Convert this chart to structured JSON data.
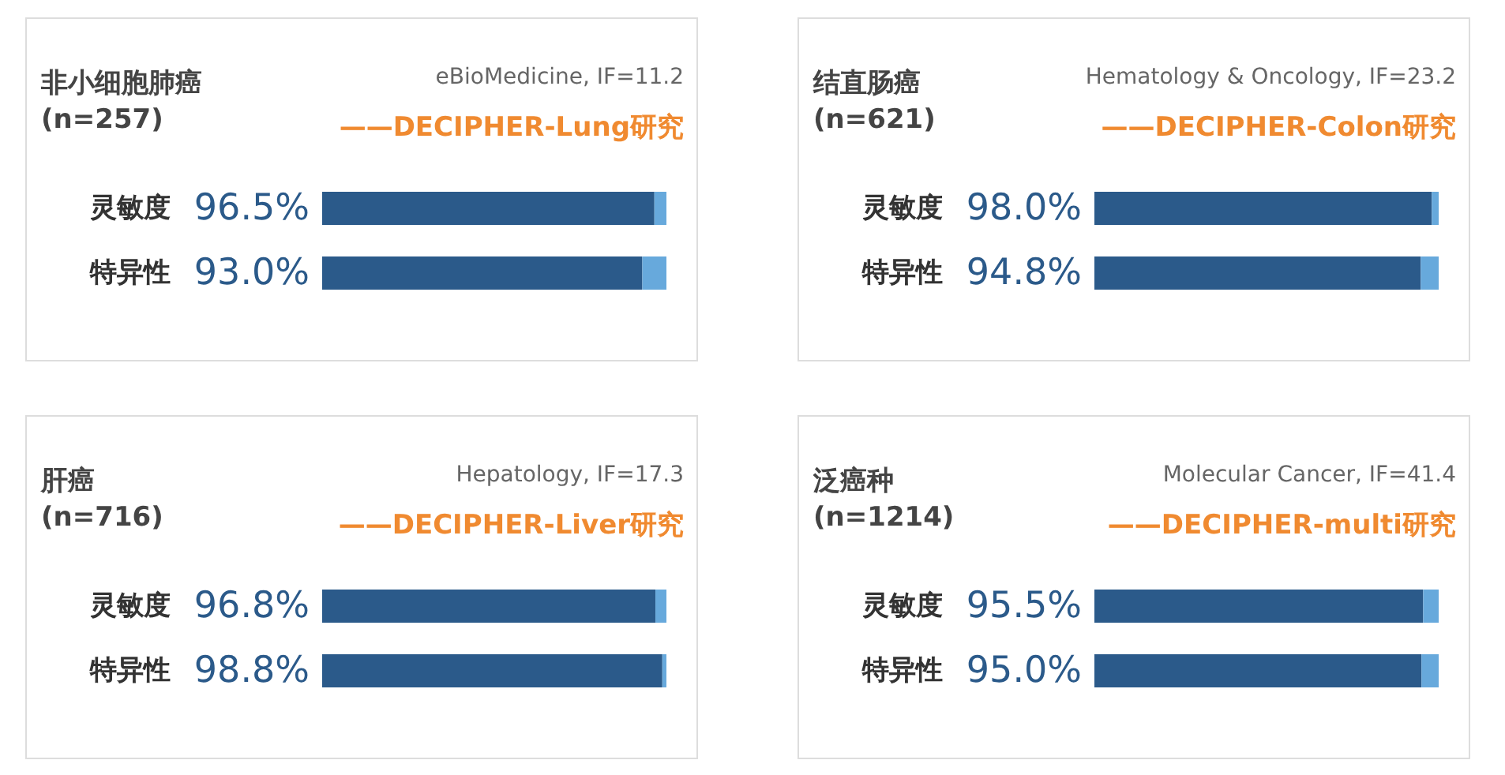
{
  "chart_data": [
    {
      "type": "bar",
      "orientation": "horizontal",
      "stacked": true,
      "title": "非小细胞肺癌\n(n=257)",
      "annotations": [
        "eBioMedicine, IF=11.2",
        "——DECIPHER-Lung研究"
      ],
      "categories": [
        "灵敏度",
        "特异性"
      ],
      "xlim": [
        0,
        100
      ],
      "tick_labels": false,
      "series": [
        {
          "color": "#2b5a8a",
          "values": [
            96.5,
            93.0
          ],
          "value_labels": [
            "96.5%",
            "93.0%"
          ]
        },
        {
          "color": "#67a9dc",
          "values": [
            3.5,
            7.0
          ]
        }
      ]
    },
    {
      "type": "bar",
      "orientation": "horizontal",
      "stacked": true,
      "title": "结直肠癌\n(n=621)",
      "annotations": [
        "Hematology & Oncology, IF=23.2",
        "——DECIPHER-Colon研究"
      ],
      "categories": [
        "灵敏度",
        "特异性"
      ],
      "xlim": [
        0,
        100
      ],
      "tick_labels": false,
      "series": [
        {
          "color": "#2b5a8a",
          "values": [
            98.0,
            94.8
          ],
          "value_labels": [
            "98.0%",
            "94.8%"
          ]
        },
        {
          "color": "#67a9dc",
          "values": [
            2.0,
            5.2
          ]
        }
      ]
    },
    {
      "type": "bar",
      "orientation": "horizontal",
      "stacked": true,
      "title": "肝癌\n(n=716)",
      "annotations": [
        "Hepatology, IF=17.3",
        "——DECIPHER-Liver研究"
      ],
      "categories": [
        "灵敏度",
        "特异性"
      ],
      "xlim": [
        0,
        100
      ],
      "tick_labels": false,
      "series": [
        {
          "color": "#2b5a8a",
          "values": [
            96.8,
            98.8
          ],
          "value_labels": [
            "96.8%",
            "98.8%"
          ]
        },
        {
          "color": "#67a9dc",
          "values": [
            3.2,
            1.2
          ]
        }
      ]
    },
    {
      "type": "bar",
      "orientation": "horizontal",
      "stacked": true,
      "title": "泛癌种\n(n=1214)",
      "annotations": [
        "Molecular Cancer, IF=41.4",
        "——DECIPHER-multi研究"
      ],
      "categories": [
        "灵敏度",
        "特异性"
      ],
      "xlim": [
        0,
        100
      ],
      "tick_labels": false,
      "series": [
        {
          "color": "#2b5a8a",
          "values": [
            95.5,
            95.0
          ],
          "value_labels": [
            "95.5%",
            "95.0%"
          ]
        },
        {
          "color": "#67a9dc",
          "values": [
            4.5,
            5.0
          ]
        }
      ]
    }
  ]
}
